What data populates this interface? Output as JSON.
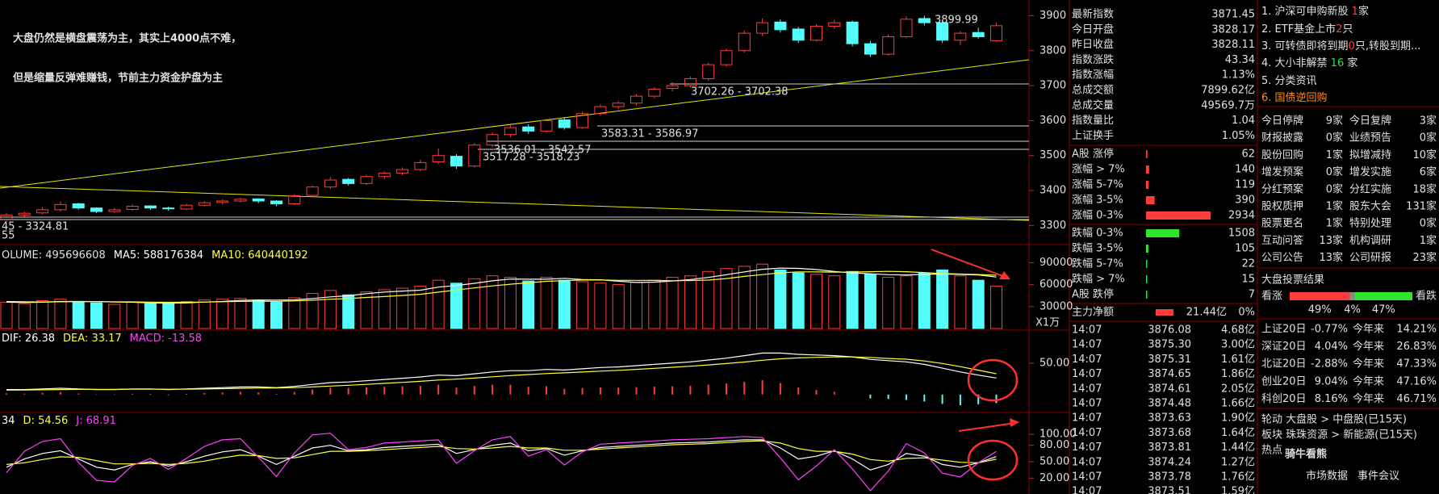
{
  "caption": [
    "大盘仍然是横盘震荡为主，其实上4000点不难，",
    "但是缩量反弹难赚钱，节前主力资金护盘为主"
  ],
  "chart_data": [
    {
      "type": "candlestick",
      "up_color": "#ff3c3c",
      "down_color": "#54fcfc",
      "ylim": [
        3250,
        3945
      ],
      "yticks": [
        3300,
        3400,
        3500,
        3600,
        3700,
        3800,
        3900
      ],
      "annotations": [
        "3899.99",
        "3702.26 - 3702.38",
        "3583.31 - 3586.97",
        "3536.01 - 3542.57",
        "3517.28 - 3518.23",
        "45 - 3324.81",
        "55"
      ],
      "candles": [
        [
          3318,
          3335,
          3312,
          3330
        ],
        [
          3330,
          3340,
          3325,
          3335
        ],
        [
          3336,
          3352,
          3332,
          3345
        ],
        [
          3345,
          3368,
          3340,
          3360
        ],
        [
          3362,
          3365,
          3345,
          3350
        ],
        [
          3350,
          3352,
          3335,
          3340
        ],
        [
          3340,
          3350,
          3336,
          3345
        ],
        [
          3346,
          3360,
          3342,
          3355
        ],
        [
          3356,
          3358,
          3345,
          3350
        ],
        [
          3350,
          3354,
          3342,
          3348
        ],
        [
          3347,
          3362,
          3344,
          3358
        ],
        [
          3358,
          3370,
          3355,
          3365
        ],
        [
          3366,
          3375,
          3360,
          3370
        ],
        [
          3370,
          3380,
          3366,
          3375
        ],
        [
          3376,
          3378,
          3364,
          3370
        ],
        [
          3370,
          3372,
          3355,
          3362
        ],
        [
          3362,
          3390,
          3358,
          3385
        ],
        [
          3386,
          3415,
          3380,
          3410
        ],
        [
          3410,
          3438,
          3405,
          3430
        ],
        [
          3432,
          3436,
          3414,
          3420
        ],
        [
          3420,
          3445,
          3416,
          3440
        ],
        [
          3440,
          3455,
          3432,
          3450
        ],
        [
          3450,
          3466,
          3444,
          3460
        ],
        [
          3460,
          3488,
          3455,
          3480
        ],
        [
          3482,
          3520,
          3476,
          3500
        ],
        [
          3498,
          3504,
          3462,
          3470
        ],
        [
          3470,
          3536,
          3466,
          3530
        ],
        [
          3530,
          3566,
          3524,
          3560
        ],
        [
          3560,
          3588,
          3552,
          3580
        ],
        [
          3582,
          3590,
          3562,
          3570
        ],
        [
          3570,
          3606,
          3565,
          3600
        ],
        [
          3602,
          3610,
          3574,
          3580
        ],
        [
          3580,
          3626,
          3576,
          3620
        ],
        [
          3620,
          3646,
          3614,
          3640
        ],
        [
          3640,
          3656,
          3632,
          3650
        ],
        [
          3650,
          3676,
          3644,
          3670
        ],
        [
          3670,
          3696,
          3664,
          3690
        ],
        [
          3692,
          3710,
          3684,
          3700
        ],
        [
          3700,
          3726,
          3694,
          3720
        ],
        [
          3720,
          3766,
          3714,
          3760
        ],
        [
          3760,
          3806,
          3754,
          3800
        ],
        [
          3800,
          3858,
          3795,
          3850
        ],
        [
          3850,
          3892,
          3842,
          3880
        ],
        [
          3882,
          3890,
          3852,
          3860
        ],
        [
          3862,
          3868,
          3822,
          3830
        ],
        [
          3830,
          3876,
          3826,
          3870
        ],
        [
          3870,
          3888,
          3862,
          3880
        ],
        [
          3882,
          3886,
          3812,
          3820
        ],
        [
          3820,
          3828,
          3782,
          3790
        ],
        [
          3790,
          3846,
          3786,
          3840
        ],
        [
          3840,
          3898,
          3836,
          3890
        ],
        [
          3892,
          3900,
          3872,
          3880
        ],
        [
          3880,
          3884,
          3822,
          3830
        ],
        [
          3830,
          3856,
          3815,
          3850
        ],
        [
          3852,
          3866,
          3834,
          3840
        ],
        [
          3828.17,
          3880,
          3825,
          3871.45
        ]
      ]
    },
    {
      "type": "volume",
      "title": "OLUME: 495696608",
      "unit": "X1万",
      "ylim": [
        0,
        112500
      ],
      "yticks": [
        30000,
        60000,
        90000
      ],
      "values": [
        36000,
        34000,
        38000,
        40000,
        37000,
        35000,
        33000,
        36000,
        34000,
        35000,
        37000,
        39000,
        40000,
        41000,
        38000,
        36000,
        42000,
        48000,
        52000,
        46000,
        50000,
        53000,
        55000,
        58000,
        66000,
        62000,
        68000,
        72000,
        70000,
        65000,
        70000,
        66000,
        64000,
        62000,
        60000,
        63000,
        66000,
        70000,
        72000,
        78000,
        82000,
        85000,
        88000,
        80000,
        76000,
        74000,
        72000,
        78000,
        74000,
        70000,
        72000,
        76000,
        80000,
        72000,
        66000,
        58000
      ],
      "series": [
        {
          "name": "MA5: 588176384",
          "color": "#ffffff",
          "values": [
            36000,
            35500,
            36000,
            37000,
            37000,
            36800,
            36200,
            36000,
            35000,
            34600,
            35000,
            36200,
            37000,
            38400,
            39000,
            38800,
            39200,
            41000,
            43200,
            44800,
            47600,
            49800,
            51200,
            52400,
            56600,
            58800,
            61800,
            65200,
            67600,
            67400,
            67400,
            68600,
            67000,
            66600,
            64600,
            63000,
            63400,
            65000,
            67000,
            69800,
            73600,
            77400,
            81000,
            82600,
            82200,
            80600,
            78000,
            76000,
            74800,
            73600,
            73200,
            74000,
            74400,
            74000,
            73200,
            70400
          ]
        },
        {
          "name": "MA10: 640440192",
          "color": "#ffff3c",
          "values": [
            37000,
            36500,
            36300,
            36500,
            36700,
            36800,
            36500,
            36400,
            36100,
            35800,
            35900,
            36200,
            36600,
            37100,
            37200,
            37200,
            37700,
            38700,
            40000,
            40900,
            42500,
            43700,
            45200,
            46800,
            49700,
            52600,
            55500,
            58200,
            60500,
            62400,
            64500,
            65400,
            66300,
            66400,
            65800,
            65900,
            65700,
            65300,
            65600,
            66200,
            68300,
            71200,
            73700,
            76100,
            77400,
            77400,
            77100,
            77100,
            77700,
            78100,
            77600,
            76400,
            75100,
            74400,
            73800,
            72800
          ]
        }
      ]
    },
    {
      "type": "macd",
      "ylim": [
        -26,
        100
      ],
      "yticks": [
        {
          "value": 50,
          "label": "50.00"
        }
      ],
      "series": [
        {
          "name": "DIF: 26.38",
          "color": "#ffffff",
          "values": [
            8,
            8,
            9,
            10,
            9,
            8,
            8,
            9,
            9,
            8,
            9,
            10,
            11,
            12,
            12,
            11,
            13,
            16,
            19,
            20,
            22,
            24,
            26,
            28,
            31,
            30,
            33,
            36,
            38,
            38,
            40,
            39,
            41,
            43,
            44,
            46,
            48,
            50,
            52,
            55,
            58,
            62,
            66,
            66,
            64,
            63,
            62,
            60,
            56,
            54,
            52,
            48,
            42,
            36,
            31,
            26.38
          ]
        },
        {
          "name": "DEA: 33.17",
          "color": "#ffff3c",
          "values": [
            7,
            7.2,
            7.6,
            8,
            8.2,
            8.2,
            8.2,
            8.4,
            8.5,
            8.4,
            8.5,
            8.8,
            9.3,
            9.9,
            10.3,
            10.5,
            11,
            12,
            13.5,
            14.8,
            16.2,
            17.8,
            19.4,
            21.1,
            23.1,
            24.5,
            26.2,
            28.2,
            30.2,
            31.8,
            33.4,
            34.5,
            35.8,
            37.2,
            38.6,
            40.1,
            41.7,
            43.4,
            45.1,
            47.1,
            49.3,
            51.8,
            54.6,
            56.9,
            58.3,
            59.3,
            59.9,
            59.9,
            59.1,
            57.5,
            56.3,
            53.5,
            49.5,
            44.5,
            38.8,
            33.17
          ]
        }
      ],
      "histogram": {
        "name": "MACD: -13.58",
        "color": "#ff40ff",
        "up_color": "#ff3c3c",
        "down_color": "#54fcfc",
        "values": [
          2,
          1.6,
          2.8,
          4,
          1.6,
          -0.4,
          -0.4,
          1.2,
          1,
          -0.8,
          1,
          2.4,
          3.4,
          4.2,
          3.4,
          1,
          4,
          8,
          11,
          10.4,
          11.6,
          12.4,
          13.2,
          13.8,
          15.8,
          11,
          13.6,
          15.6,
          15.6,
          12.4,
          13.2,
          9,
          10.4,
          11.6,
          10.8,
          11.8,
          12.6,
          13.2,
          13.8,
          15.8,
          17.4,
          20.4,
          22.8,
          18.2,
          11.4,
          7.4,
          4.2,
          0.2,
          -6.2,
          -7,
          -8.6,
          -11,
          -15,
          -17,
          -15.6,
          -13.58
        ]
      }
    },
    {
      "type": "kdj",
      "ylim": [
        -9,
        137
      ],
      "yticks": [
        {
          "value": 20,
          "label": "20.00"
        },
        {
          "value": 50,
          "label": "50.00"
        },
        {
          "value": 80,
          "label": "80.00"
        },
        {
          "value": 100,
          "label": "100.00"
        }
      ],
      "series": [
        {
          "name": "34",
          "color": "#ffffff",
          "values": [
            40,
            55,
            65,
            70,
            55,
            40,
            35,
            45,
            50,
            42,
            50,
            60,
            68,
            72,
            60,
            45,
            60,
            75,
            80,
            70,
            72,
            76,
            78,
            80,
            82,
            65,
            72,
            80,
            84,
            70,
            74,
            62,
            70,
            76,
            78,
            80,
            82,
            84,
            85,
            86,
            88,
            90,
            90,
            75,
            55,
            60,
            70,
            55,
            35,
            45,
            65,
            60,
            45,
            40,
            48,
            59.34
          ]
        },
        {
          "name": "D: 54.56",
          "color": "#ffff3c",
          "values": [
            45,
            48,
            54,
            59,
            58,
            52,
            46,
            46,
            47,
            45,
            47,
            51,
            57,
            62,
            61,
            56,
            57,
            63,
            69,
            69,
            70,
            72,
            74,
            76,
            78,
            74,
            73,
            75,
            78,
            75,
            75,
            71,
            71,
            73,
            75,
            77,
            79,
            81,
            82,
            83,
            85,
            87,
            88,
            84,
            74,
            69,
            69,
            64,
            54,
            51,
            56,
            57,
            53,
            49,
            48,
            54.56
          ]
        },
        {
          "name": "J: 68.91",
          "color": "#ff40ff",
          "values": [
            30,
            69,
            87,
            92,
            49,
            16,
            13,
            43,
            56,
            36,
            56,
            78,
            90,
            92,
            58,
            23,
            66,
            99,
            102,
            72,
            76,
            84,
            86,
            88,
            90,
            47,
            70,
            90,
            96,
            60,
            72,
            44,
            68,
            82,
            84,
            86,
            88,
            90,
            91,
            92,
            94,
            96,
            94,
            57,
            17,
            42,
            72,
            37,
            -3,
            33,
            83,
            66,
            29,
            22,
            48,
            68.91
          ]
        }
      ]
    }
  ],
  "quote": [
    {
      "label": "最新指数",
      "value": "3871.45",
      "color": "#ff4040"
    },
    {
      "label": "今日开盘",
      "value": "3828.17",
      "color": "#ff4040"
    },
    {
      "label": "昨日收盘",
      "value": "3828.11",
      "color": "#e0e0e0"
    },
    {
      "label": "指数涨跌",
      "value": "43.34",
      "color": "#ff4040"
    },
    {
      "label": "指数涨幅",
      "value": "1.13%",
      "color": "#ff4040"
    },
    {
      "label": "总成交额",
      "value": "7899.62亿",
      "color": "#ffd23c"
    },
    {
      "label": "总成交量",
      "value": "49569.7万",
      "color": "#ffd23c"
    },
    {
      "label": "指数量比",
      "value": "1.04",
      "color": "#ff4040"
    },
    {
      "label": "上证换手",
      "value": "1.05%",
      "color": "#e0e0e0"
    }
  ],
  "breadth": [
    {
      "label": "A股 涨停",
      "value": 62,
      "color": "#ff3c3c"
    },
    {
      "label": "涨幅 > 7%",
      "value": 140,
      "color": "#ff3c3c"
    },
    {
      "label": "涨幅 5-7%",
      "value": 119,
      "color": "#ff3c3c"
    },
    {
      "label": "涨幅 3-5%",
      "value": 390,
      "color": "#ff3c3c"
    },
    {
      "label": "涨幅 0-3%",
      "value": 2934,
      "color": "#ff3c3c"
    },
    {
      "label": "跌幅 0-3%",
      "value": 1508,
      "color": "#2ee62e"
    },
    {
      "label": "跌幅 3-5%",
      "value": 105,
      "color": "#2ee62e"
    },
    {
      "label": "跌幅 5-7%",
      "value": 22,
      "color": "#2ee62e"
    },
    {
      "label": "跌幅 > 7%",
      "value": 15,
      "color": "#2ee62e"
    },
    {
      "label": "A股 跌停",
      "value": 7,
      "color": "#2ee62e"
    }
  ],
  "net": [
    "主力净额",
    "21.44亿",
    "0%"
  ],
  "trades": [
    [
      "14:07",
      "3876.08",
      "4.68亿"
    ],
    [
      "14:07",
      "3875.30",
      "3.00亿"
    ],
    [
      "14:07",
      "3875.31",
      "1.61亿"
    ],
    [
      "14:07",
      "3874.65",
      "1.86亿"
    ],
    [
      "14:07",
      "3874.61",
      "2.05亿"
    ],
    [
      "14:07",
      "3874.48",
      "1.66亿"
    ],
    [
      "14:07",
      "3873.63",
      "1.90亿"
    ],
    [
      "14:07",
      "3873.68",
      "1.64亿"
    ],
    [
      "14:07",
      "3873.81",
      "1.44亿"
    ],
    [
      "14:07",
      "3874.24",
      "1.27亿"
    ],
    [
      "14:07",
      "3873.78",
      "1.76亿"
    ],
    [
      "14:07",
      "3873.51",
      "1.59亿"
    ]
  ],
  "news": [
    [
      "1. 沪深可申购新股 ",
      "1",
      "家"
    ],
    [
      "2. ETF基金上市",
      "2",
      "只"
    ],
    [
      "3. 可转债即将到期",
      "0",
      "只,转股到期..."
    ],
    [
      "4. 大小非解禁 ",
      "16",
      " 家"
    ],
    [
      "5. 分类资讯"
    ],
    [
      "6. 国债逆回购"
    ]
  ],
  "events": [
    [
      "今日停牌",
      "9家",
      "今日复牌",
      "3家"
    ],
    [
      "财报披露",
      "0家",
      "业绩预告",
      "0家"
    ],
    [
      "股份回购",
      "1家",
      "拟增减持",
      "10家"
    ],
    [
      "增发预案",
      "0家",
      "增发实施",
      "6家"
    ],
    [
      "分红预案",
      "0家",
      "分红实施",
      "18家"
    ],
    [
      "股权质押",
      "1家",
      "股东大会",
      "131家"
    ],
    [
      "股票更名",
      "1家",
      "特别处理",
      "0家"
    ],
    [
      "互动问答",
      "13家",
      "机构调研",
      "1家"
    ],
    [
      "公司公告",
      "13家",
      "公司研报",
      "23家"
    ]
  ],
  "vote": {
    "title": "大盘投票结果",
    "left": "看涨",
    "right": "看跌",
    "values": [
      49,
      4,
      47
    ],
    "value_labels": [
      "49%",
      "4%",
      "47%"
    ],
    "colors": [
      "#ff3c3c",
      "#888888",
      "#2ee62e"
    ]
  },
  "indices": [
    [
      "上证20日",
      "-0.77%",
      "今年来",
      "14.21%"
    ],
    [
      "深证20日",
      "4.04%",
      "今年来",
      "26.83%"
    ],
    [
      "北证20日",
      "-2.88%",
      "今年来",
      "47.33%"
    ],
    [
      "创业20日",
      "9.04%",
      "今年来",
      "47.16%"
    ],
    [
      "科创20日",
      "8.16%",
      "今年来",
      "46.71%"
    ]
  ],
  "rotation": [
    "轮动 大盘股 > 中盘股(已15天)",
    "板块 珠珠资源 > 新能源(已15天)",
    "热点"
  ],
  "watermark": "骑牛看熊",
  "footer": [
    "市场数据",
    "事件会议"
  ]
}
